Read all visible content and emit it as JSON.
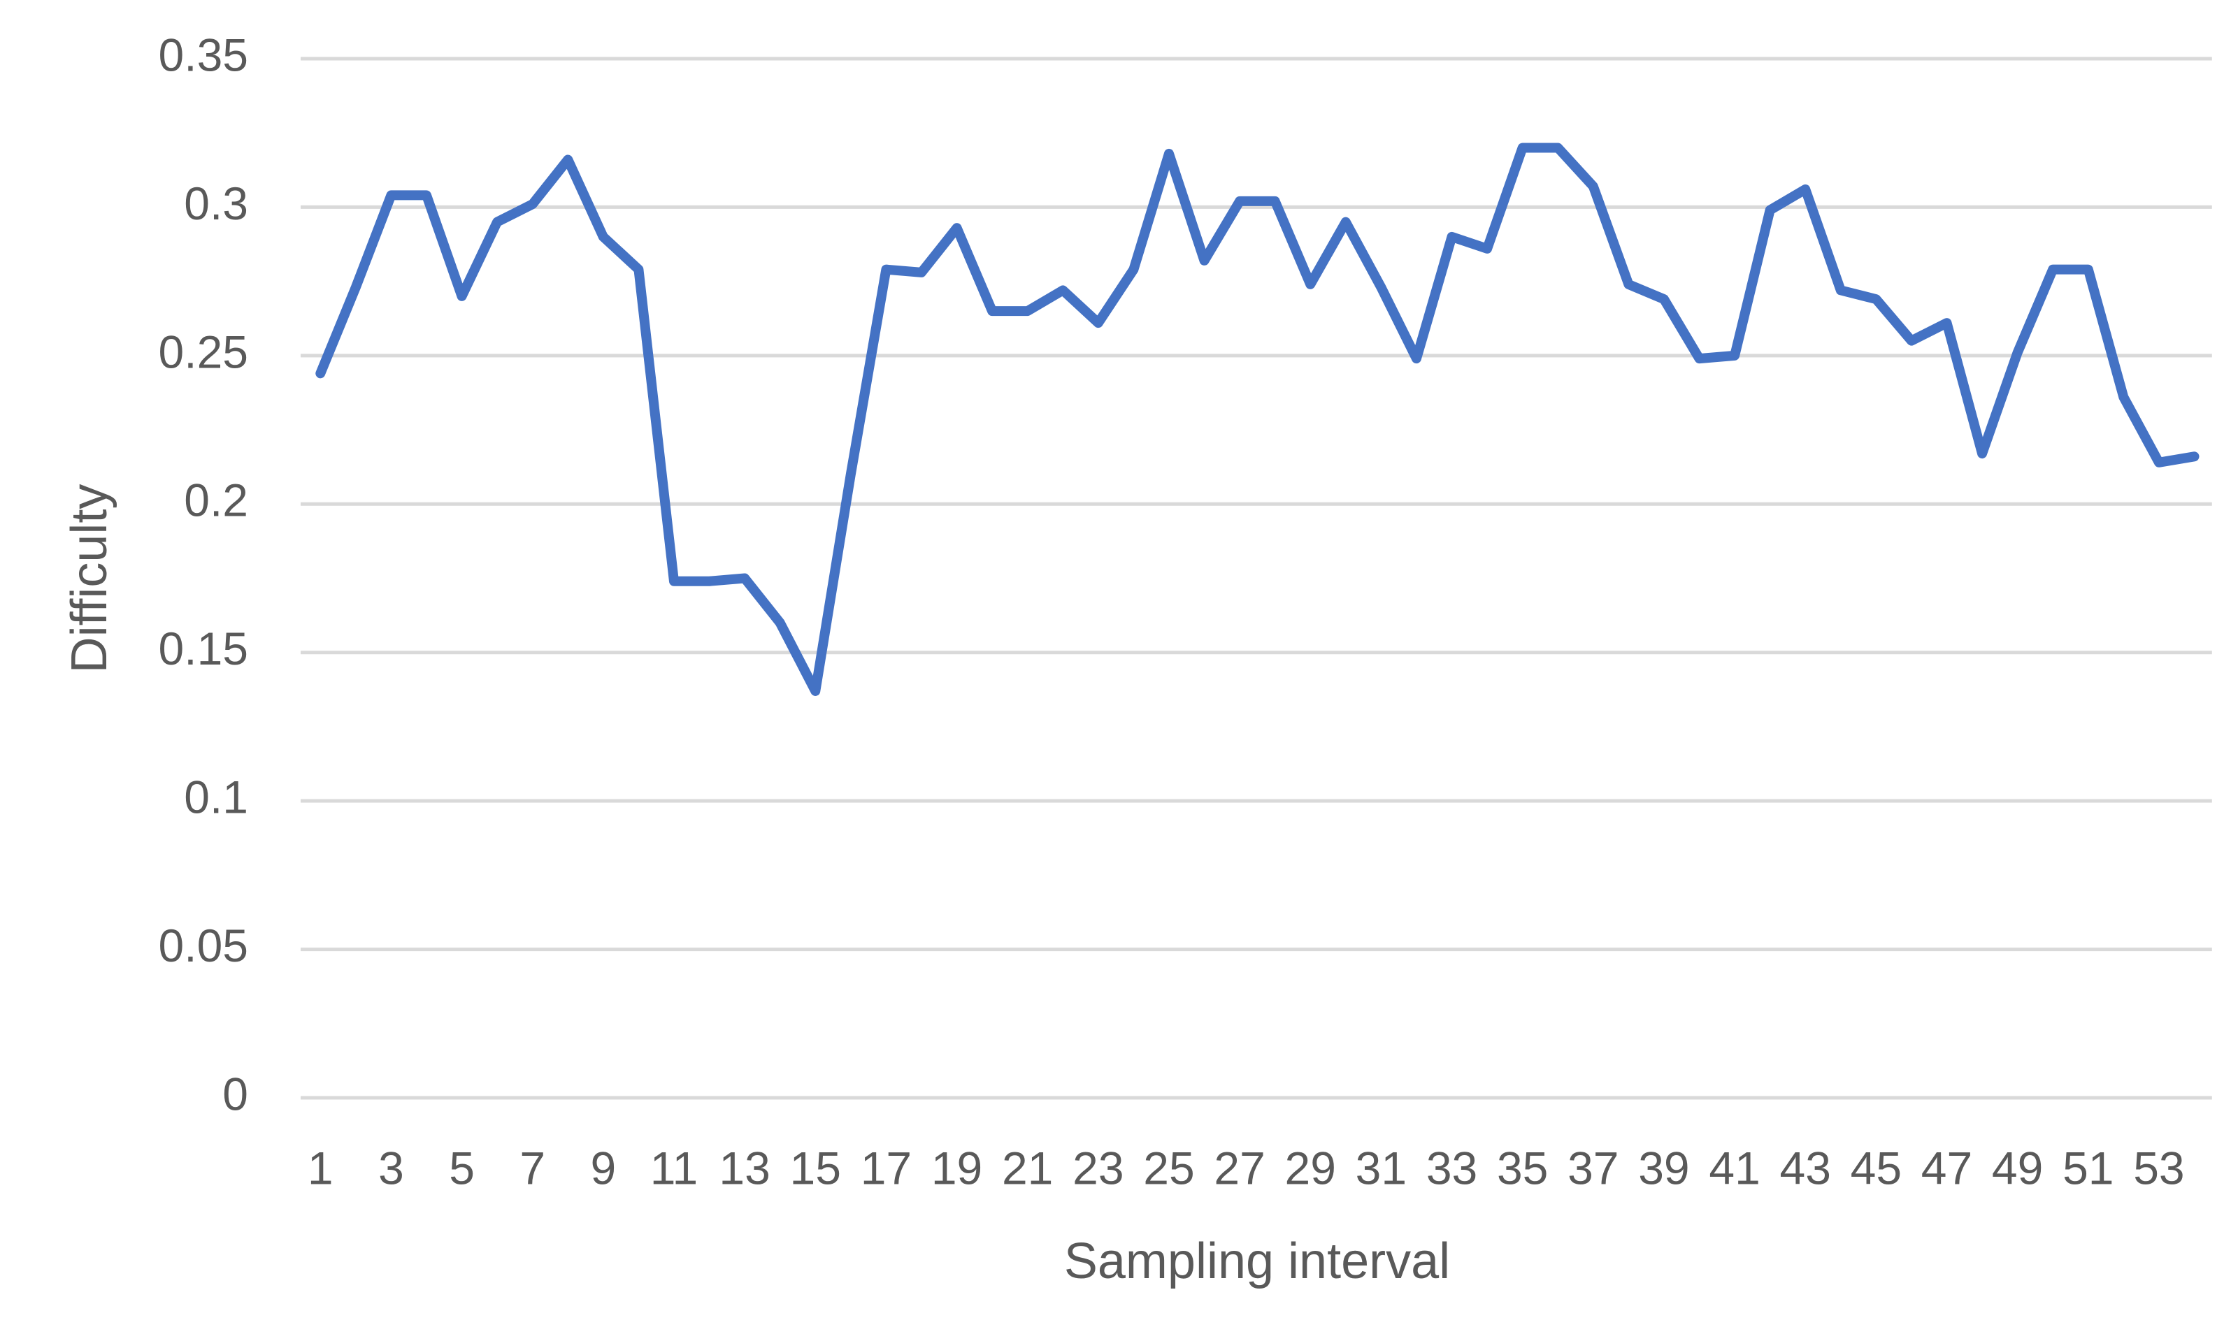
{
  "chart_data": {
    "type": "line",
    "x_label": "Sampling interval",
    "y_label": "Difficulty",
    "categories": [
      "1",
      null,
      "3",
      null,
      "5",
      null,
      "7",
      null,
      "9",
      null,
      "11",
      null,
      "13",
      null,
      "15",
      null,
      "17",
      null,
      "19",
      null,
      "21",
      null,
      "23",
      null,
      "25",
      null,
      "27",
      null,
      "29",
      null,
      "31",
      null,
      "33",
      null,
      "35",
      null,
      "37",
      null,
      "39",
      null,
      "41",
      null,
      "43",
      null,
      "45",
      null,
      "47",
      null,
      "49",
      null,
      "51",
      null,
      "53",
      null
    ],
    "series": [
      {
        "color": "#4472c4",
        "values": [
          0.244,
          0.273,
          0.304,
          0.304,
          0.27,
          0.295,
          0.301,
          0.316,
          0.29,
          0.279,
          0.174,
          0.174,
          0.175,
          0.16,
          0.137,
          0.21,
          0.279,
          0.278,
          0.293,
          0.265,
          0.265,
          0.272,
          0.261,
          0.279,
          0.318,
          0.282,
          0.302,
          0.302,
          0.274,
          0.295,
          0.273,
          0.249,
          0.29,
          0.286,
          0.32,
          0.32,
          0.307,
          0.274,
          0.269,
          0.249,
          0.25,
          0.299,
          0.306,
          0.272,
          0.269,
          0.255,
          0.261,
          0.217,
          0.251,
          0.279,
          0.279,
          0.236,
          0.214,
          0.216
        ]
      }
    ],
    "ylim": [
      0,
      0.35
    ],
    "yticks": [
      0,
      0.05,
      0.1,
      0.15,
      0.2,
      0.25,
      0.3,
      0.35
    ],
    "grid": true
  }
}
